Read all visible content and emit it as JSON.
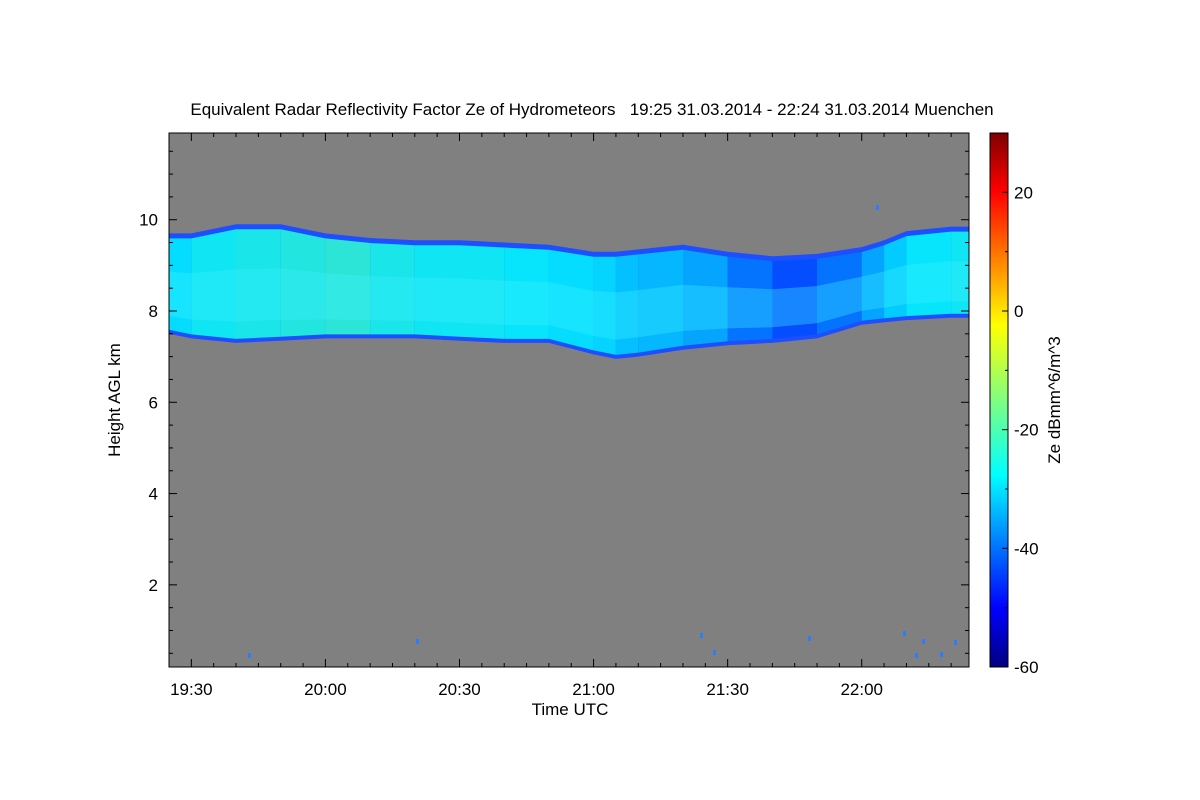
{
  "chart_data": {
    "type": "heatmap",
    "title": "Equivalent Radar Reflectivity Factor Ze of Hydrometeors   19:25 31.03.2014 - 22:24 31.03.2014 Muenchen",
    "xlabel": "Time UTC",
    "ylabel": "Height AGL km",
    "colorbar_label": "Ze dBmm^6/m^3",
    "x_range": [
      "19:25",
      "22:24"
    ],
    "x_ticks": [
      "19:30",
      "20:00",
      "20:30",
      "21:00",
      "21:30",
      "22:00"
    ],
    "y_range": [
      0.2,
      11.9
    ],
    "y_ticks": [
      2,
      4,
      6,
      8,
      10
    ],
    "colorbar_range": [
      -60,
      30
    ],
    "colorbar_ticks": [
      20,
      0,
      -20,
      -40,
      -60
    ],
    "colormap": "jet",
    "background_color": "#808080",
    "cloud_layer": {
      "time": [
        "19:25",
        "19:30",
        "19:40",
        "19:50",
        "20:00",
        "20:10",
        "20:20",
        "20:30",
        "20:40",
        "20:50",
        "21:00",
        "21:05",
        "21:10",
        "21:20",
        "21:30",
        "21:40",
        "21:50",
        "22:00",
        "22:05",
        "22:10",
        "22:20",
        "22:24"
      ],
      "top_km": [
        9.7,
        9.7,
        9.9,
        9.9,
        9.7,
        9.6,
        9.55,
        9.55,
        9.5,
        9.45,
        9.3,
        9.3,
        9.35,
        9.45,
        9.3,
        9.2,
        9.25,
        9.4,
        9.55,
        9.75,
        9.85,
        9.85
      ],
      "base_km": [
        7.5,
        7.4,
        7.3,
        7.35,
        7.4,
        7.4,
        7.4,
        7.35,
        7.3,
        7.3,
        7.05,
        6.95,
        7.0,
        7.15,
        7.25,
        7.3,
        7.4,
        7.7,
        7.75,
        7.8,
        7.85,
        7.85
      ],
      "ze_typical_dbz": [
        -27,
        -25,
        -24,
        -23,
        -22,
        -24,
        -25,
        -25,
        -26,
        -27,
        -28,
        -30,
        -31,
        -33,
        -38,
        -42,
        -38,
        -33,
        -29,
        -26,
        -25,
        -26
      ]
    },
    "grid": false,
    "legend": "colorbar-right"
  }
}
